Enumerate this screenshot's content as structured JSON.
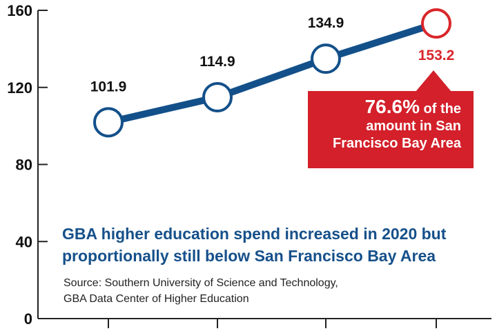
{
  "chart_data": {
    "type": "line",
    "title": "GBA higher education spend increased in 2020 but proportionally still below San Francisco Bay Area",
    "xlabel": "",
    "ylabel": "",
    "ylim": [
      0,
      160
    ],
    "yticks": [
      0,
      40,
      80,
      120,
      160
    ],
    "grid": false,
    "series": [
      {
        "name": "GBA higher education spend",
        "values": [
          101.9,
          114.9,
          134.9,
          153.2
        ],
        "labels": [
          "101.9",
          "114.9",
          "134.9",
          "153.2"
        ],
        "color": "#13508a",
        "highlight_index": 3,
        "highlight_color": "#d9262a"
      }
    ],
    "annotation": {
      "pct": "76.6%",
      "line1_rest": " of the",
      "line2": "amount in San",
      "line3": "Francisco Bay Area",
      "color": "#d3202a"
    },
    "source_line1": "Source: Southern University of Science and Technology,",
    "source_line2": "GBA Data Center of Higher Education"
  }
}
